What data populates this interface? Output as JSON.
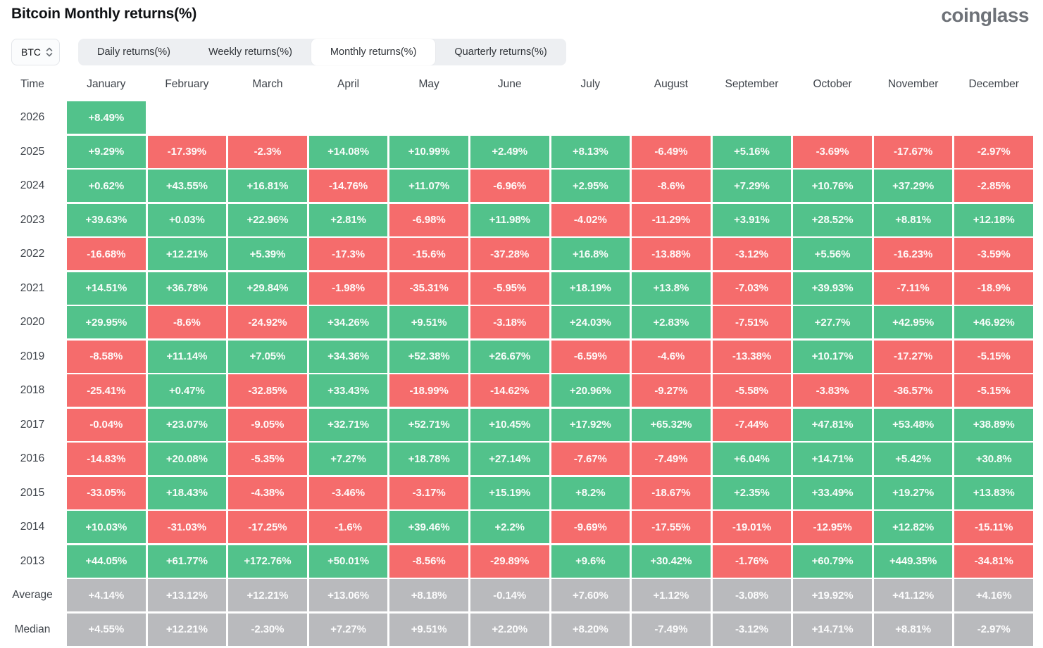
{
  "page": {
    "title": "Bitcoin Monthly returns(%)",
    "logo": "coinglass"
  },
  "controls": {
    "coin": "BTC",
    "tabs": [
      {
        "label": "Daily returns(%)",
        "active": false
      },
      {
        "label": "Weekly returns(%)",
        "active": false
      },
      {
        "label": "Monthly returns(%)",
        "active": true
      },
      {
        "label": "Quarterly returns(%)",
        "active": false
      }
    ]
  },
  "colors": {
    "positive": "#52c28b",
    "negative": "#f56c6c",
    "summary": "#b9babd",
    "tab_bar_bg": "#edeff2",
    "active_tab_bg": "#ffffff",
    "header_text": "#3e434a"
  },
  "chart_data": {
    "type": "heatmap",
    "title": "Bitcoin Monthly returns(%)",
    "legend": "green = positive monthly return, red = negative monthly return, gray = summary rows",
    "columns": [
      "Time",
      "January",
      "February",
      "March",
      "April",
      "May",
      "June",
      "July",
      "August",
      "September",
      "October",
      "November",
      "December"
    ],
    "rows": [
      {
        "label": "2026",
        "summary": false,
        "values": [
          "+8.49%",
          "",
          "",
          "",
          "",
          "",
          "",
          "",
          "",
          "",
          "",
          ""
        ]
      },
      {
        "label": "2025",
        "summary": false,
        "values": [
          "+9.29%",
          "-17.39%",
          "-2.3%",
          "+14.08%",
          "+10.99%",
          "+2.49%",
          "+8.13%",
          "-6.49%",
          "+5.16%",
          "-3.69%",
          "-17.67%",
          "-2.97%"
        ]
      },
      {
        "label": "2024",
        "summary": false,
        "values": [
          "+0.62%",
          "+43.55%",
          "+16.81%",
          "-14.76%",
          "+11.07%",
          "-6.96%",
          "+2.95%",
          "-8.6%",
          "+7.29%",
          "+10.76%",
          "+37.29%",
          "-2.85%"
        ]
      },
      {
        "label": "2023",
        "summary": false,
        "values": [
          "+39.63%",
          "+0.03%",
          "+22.96%",
          "+2.81%",
          "-6.98%",
          "+11.98%",
          "-4.02%",
          "-11.29%",
          "+3.91%",
          "+28.52%",
          "+8.81%",
          "+12.18%"
        ]
      },
      {
        "label": "2022",
        "summary": false,
        "values": [
          "-16.68%",
          "+12.21%",
          "+5.39%",
          "-17.3%",
          "-15.6%",
          "-37.28%",
          "+16.8%",
          "-13.88%",
          "-3.12%",
          "+5.56%",
          "-16.23%",
          "-3.59%"
        ]
      },
      {
        "label": "2021",
        "summary": false,
        "values": [
          "+14.51%",
          "+36.78%",
          "+29.84%",
          "-1.98%",
          "-35.31%",
          "-5.95%",
          "+18.19%",
          "+13.8%",
          "-7.03%",
          "+39.93%",
          "-7.11%",
          "-18.9%"
        ]
      },
      {
        "label": "2020",
        "summary": false,
        "values": [
          "+29.95%",
          "-8.6%",
          "-24.92%",
          "+34.26%",
          "+9.51%",
          "-3.18%",
          "+24.03%",
          "+2.83%",
          "-7.51%",
          "+27.7%",
          "+42.95%",
          "+46.92%"
        ]
      },
      {
        "label": "2019",
        "summary": false,
        "values": [
          "-8.58%",
          "+11.14%",
          "+7.05%",
          "+34.36%",
          "+52.38%",
          "+26.67%",
          "-6.59%",
          "-4.6%",
          "-13.38%",
          "+10.17%",
          "-17.27%",
          "-5.15%"
        ]
      },
      {
        "label": "2018",
        "summary": false,
        "values": [
          "-25.41%",
          "+0.47%",
          "-32.85%",
          "+33.43%",
          "-18.99%",
          "-14.62%",
          "+20.96%",
          "-9.27%",
          "-5.58%",
          "-3.83%",
          "-36.57%",
          "-5.15%"
        ]
      },
      {
        "label": "2017",
        "summary": false,
        "values": [
          "-0.04%",
          "+23.07%",
          "-9.05%",
          "+32.71%",
          "+52.71%",
          "+10.45%",
          "+17.92%",
          "+65.32%",
          "-7.44%",
          "+47.81%",
          "+53.48%",
          "+38.89%"
        ]
      },
      {
        "label": "2016",
        "summary": false,
        "values": [
          "-14.83%",
          "+20.08%",
          "-5.35%",
          "+7.27%",
          "+18.78%",
          "+27.14%",
          "-7.67%",
          "-7.49%",
          "+6.04%",
          "+14.71%",
          "+5.42%",
          "+30.8%"
        ]
      },
      {
        "label": "2015",
        "summary": false,
        "values": [
          "-33.05%",
          "+18.43%",
          "-4.38%",
          "-3.46%",
          "-3.17%",
          "+15.19%",
          "+8.2%",
          "-18.67%",
          "+2.35%",
          "+33.49%",
          "+19.27%",
          "+13.83%"
        ]
      },
      {
        "label": "2014",
        "summary": false,
        "values": [
          "+10.03%",
          "-31.03%",
          "-17.25%",
          "-1.6%",
          "+39.46%",
          "+2.2%",
          "-9.69%",
          "-17.55%",
          "-19.01%",
          "-12.95%",
          "+12.82%",
          "-15.11%"
        ]
      },
      {
        "label": "2013",
        "summary": false,
        "values": [
          "+44.05%",
          "+61.77%",
          "+172.76%",
          "+50.01%",
          "-8.56%",
          "-29.89%",
          "+9.6%",
          "+30.42%",
          "-1.76%",
          "+60.79%",
          "+449.35%",
          "-34.81%"
        ]
      },
      {
        "label": "Average",
        "summary": true,
        "values": [
          "+4.14%",
          "+13.12%",
          "+12.21%",
          "+13.06%",
          "+8.18%",
          "-0.14%",
          "+7.60%",
          "+1.12%",
          "-3.08%",
          "+19.92%",
          "+41.12%",
          "+4.16%"
        ]
      },
      {
        "label": "Median",
        "summary": true,
        "values": [
          "+4.55%",
          "+12.21%",
          "-2.30%",
          "+7.27%",
          "+9.51%",
          "+2.20%",
          "+8.20%",
          "-7.49%",
          "-3.12%",
          "+14.71%",
          "+8.81%",
          "-2.97%"
        ]
      }
    ]
  }
}
